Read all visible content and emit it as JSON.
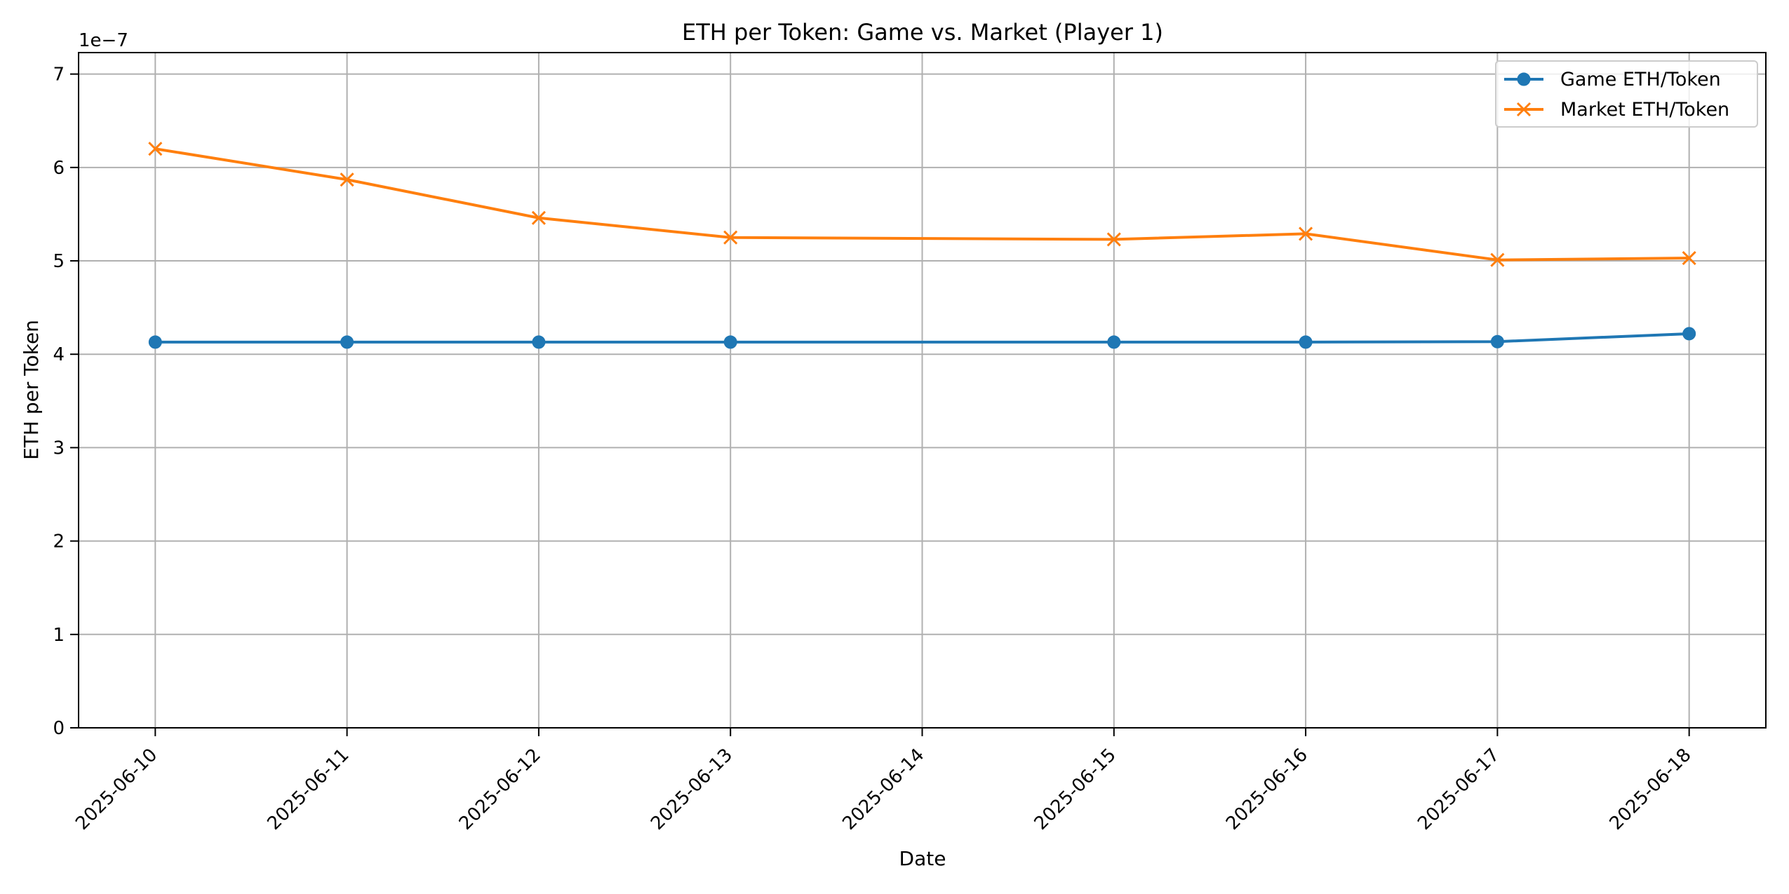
{
  "chart_data": {
    "type": "line",
    "title": "ETH per Token: Game vs. Market (Player 1)",
    "xlabel": "Date",
    "ylabel": "ETH per Token",
    "y_offset_label": "1e−7",
    "x_ticks": [
      "2025-06-10",
      "2025-06-11",
      "2025-06-12",
      "2025-06-13",
      "2025-06-14",
      "2025-06-15",
      "2025-06-16",
      "2025-06-17",
      "2025-06-18"
    ],
    "y_ticks": [
      "0",
      "1",
      "2",
      "3",
      "4",
      "5",
      "6",
      "7"
    ],
    "y_tick_values": [
      0,
      1e-07,
      2e-07,
      3e-07,
      4e-07,
      5e-07,
      6e-07,
      7e-07
    ],
    "xlim": [
      "2025-06-09T14:24",
      "2025-06-18T09:36"
    ],
    "ylim": [
      0,
      7.23e-07
    ],
    "grid": true,
    "legend_position": "top-right",
    "series": [
      {
        "name": "Game ETH/Token",
        "color": "#1f77b4",
        "marker": "circle",
        "x": [
          "2025-06-10",
          "2025-06-11",
          "2025-06-12",
          "2025-06-13",
          "2025-06-15",
          "2025-06-16",
          "2025-06-17",
          "2025-06-18"
        ],
        "values": [
          4.13e-07,
          4.13e-07,
          4.13e-07,
          4.13e-07,
          4.13e-07,
          4.13e-07,
          4.135e-07,
          4.22e-07
        ]
      },
      {
        "name": "Market ETH/Token",
        "color": "#ff7f0e",
        "marker": "x",
        "x": [
          "2025-06-10",
          "2025-06-11",
          "2025-06-12",
          "2025-06-13",
          "2025-06-15",
          "2025-06-16",
          "2025-06-17",
          "2025-06-18"
        ],
        "values": [
          6.2e-07,
          5.87e-07,
          5.46e-07,
          5.25e-07,
          5.23e-07,
          5.29e-07,
          5.01e-07,
          5.03e-07
        ]
      }
    ]
  }
}
